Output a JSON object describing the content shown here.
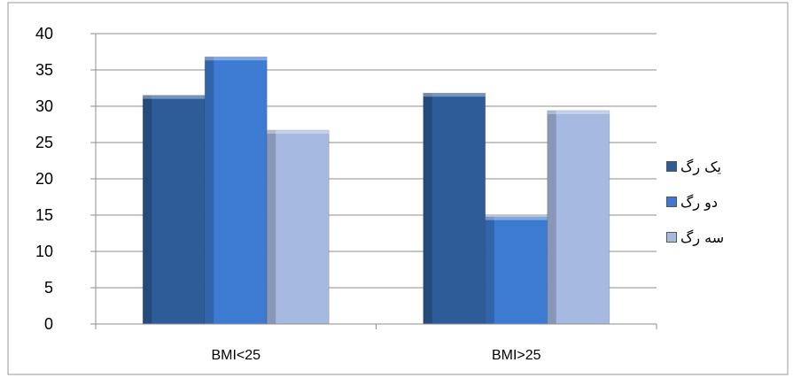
{
  "chart_data": {
    "type": "bar",
    "categories": [
      "BMI<25",
      "BMI>25"
    ],
    "series": [
      {
        "name": "یک رگ",
        "values": [
          31.5,
          31.8
        ],
        "color": "#2E5C99"
      },
      {
        "name": "دو رگ",
        "values": [
          36.8,
          14.8
        ],
        "color": "#3D7AD1"
      },
      {
        "name": "سه رگ",
        "values": [
          26.7,
          29.4
        ],
        "color": "#A6B9E0"
      }
    ],
    "y_ticks": [
      "0",
      "5",
      "10",
      "15",
      "20",
      "25",
      "30",
      "35",
      "40"
    ],
    "ylim": [
      0,
      40
    ],
    "grid": true,
    "legend_position": "right"
  }
}
